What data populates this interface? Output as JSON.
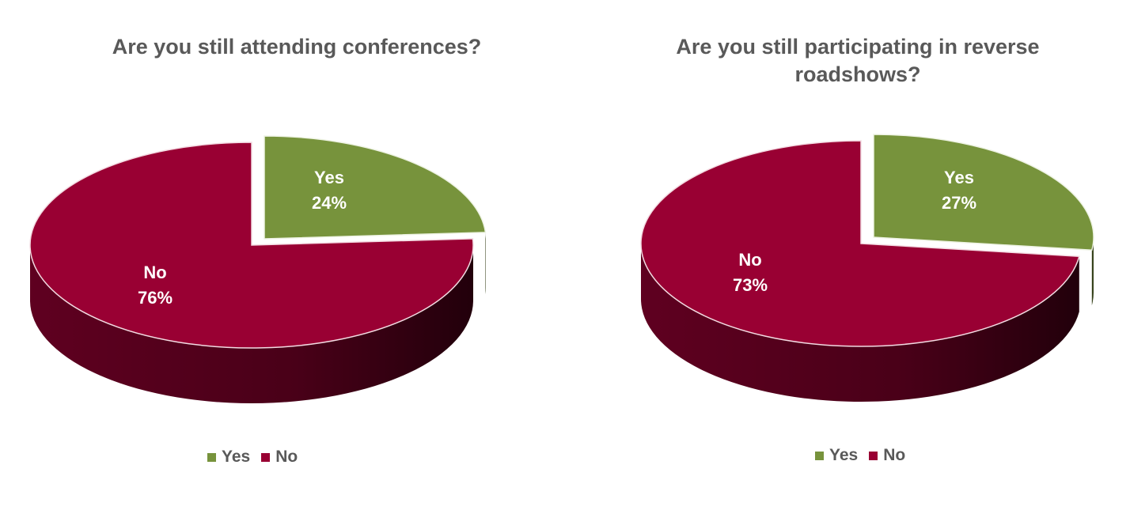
{
  "colors": {
    "yes": "#77933C",
    "no": "#990033"
  },
  "chart_data": [
    {
      "type": "pie",
      "title": "Are you still attending conferences?",
      "categories": [
        "Yes",
        "No"
      ],
      "values": [
        24,
        76
      ],
      "data_labels": [
        {
          "name": "Yes",
          "value": "24%"
        },
        {
          "name": "No",
          "value": "76%"
        }
      ],
      "legend": {
        "position": "bottom",
        "entries": [
          "Yes",
          "No"
        ]
      }
    },
    {
      "type": "pie",
      "title": "Are you still participating in  reverse roadshows?",
      "categories": [
        "Yes",
        "No"
      ],
      "values": [
        27,
        73
      ],
      "data_labels": [
        {
          "name": "Yes",
          "value": "27%"
        },
        {
          "name": "No",
          "value": "73%"
        }
      ],
      "legend": {
        "position": "bottom",
        "entries": [
          "Yes",
          "No"
        ]
      }
    }
  ]
}
